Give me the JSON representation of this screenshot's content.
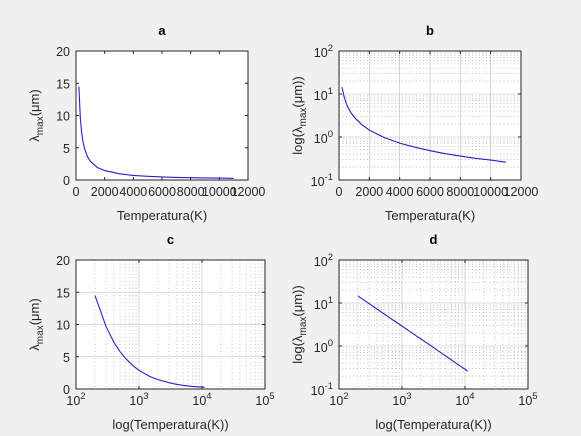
{
  "chart_data": [
    {
      "id": "a",
      "type": "line",
      "title": "a",
      "xlabel": "Temperatura(K)",
      "ylabel": [
        "λ",
        "max",
        "(μm)"
      ],
      "xscale": "linear",
      "yscale": "linear",
      "xlim": [
        0,
        12000
      ],
      "ylim": [
        0,
        20
      ],
      "xticks": [
        0,
        2000,
        4000,
        6000,
        8000,
        10000,
        12000
      ],
      "xticklabels": [
        "0",
        "2000",
        "4000",
        "6000",
        "8000",
        "10000",
        "12000"
      ],
      "yticks": [
        0,
        5,
        10,
        15,
        20
      ],
      "yticklabels": [
        "0",
        "5",
        "10",
        "15",
        "20"
      ],
      "grid": false,
      "color": "#2222cc",
      "x": [
        200,
        300,
        400,
        500,
        600,
        800,
        1000,
        1500,
        2000,
        3000,
        4000,
        5000,
        6000,
        7000,
        8000,
        9000,
        10000,
        11000
      ],
      "y": [
        14.49,
        9.66,
        7.24,
        5.8,
        4.83,
        3.62,
        2.9,
        1.93,
        1.45,
        0.97,
        0.72,
        0.58,
        0.48,
        0.41,
        0.36,
        0.32,
        0.29,
        0.26
      ]
    },
    {
      "id": "b",
      "type": "line",
      "title": "b",
      "xlabel": "Temperatura(K)",
      "ylabel": [
        "log(λ",
        "max",
        "(μm))"
      ],
      "xscale": "linear",
      "yscale": "log",
      "xlim": [
        0,
        12000
      ],
      "ylim": [
        0.1,
        100
      ],
      "xticks": [
        0,
        2000,
        4000,
        6000,
        8000,
        10000,
        12000
      ],
      "xticklabels": [
        "0",
        "2000",
        "4000",
        "6000",
        "8000",
        "10000",
        "12000"
      ],
      "yticks": [
        0.1,
        1,
        10,
        100
      ],
      "yticklabels": [
        [
          "10",
          "-1"
        ],
        [
          "10",
          "0"
        ],
        [
          "10",
          "1"
        ],
        [
          "10",
          "2"
        ]
      ],
      "grid": true,
      "color": "#2222cc",
      "x": [
        200,
        300,
        400,
        500,
        600,
        800,
        1000,
        1500,
        2000,
        3000,
        4000,
        5000,
        6000,
        7000,
        8000,
        9000,
        10000,
        11000
      ],
      "y": [
        14.49,
        9.66,
        7.24,
        5.8,
        4.83,
        3.62,
        2.9,
        1.93,
        1.45,
        0.97,
        0.72,
        0.58,
        0.48,
        0.41,
        0.36,
        0.32,
        0.29,
        0.26
      ]
    },
    {
      "id": "c",
      "type": "line",
      "title": "c",
      "xlabel": "log(Temperatura(K))",
      "ylabel": [
        "λ",
        "max",
        "(μm)"
      ],
      "xscale": "log",
      "yscale": "linear",
      "xlim": [
        100,
        100000
      ],
      "ylim": [
        0,
        20
      ],
      "xticks": [
        100,
        1000,
        10000,
        100000
      ],
      "xticklabels": [
        [
          "10",
          "2"
        ],
        [
          "10",
          "3"
        ],
        [
          "10",
          "4"
        ],
        [
          "10",
          "5"
        ]
      ],
      "yticks": [
        0,
        5,
        10,
        15,
        20
      ],
      "yticklabels": [
        "0",
        "5",
        "10",
        "15",
        "20"
      ],
      "grid": true,
      "color": "#2222cc",
      "x": [
        200,
        300,
        400,
        500,
        600,
        800,
        1000,
        1500,
        2000,
        3000,
        4000,
        5000,
        6000,
        7000,
        8000,
        9000,
        10000,
        11000
      ],
      "y": [
        14.49,
        9.66,
        7.24,
        5.8,
        4.83,
        3.62,
        2.9,
        1.93,
        1.45,
        0.97,
        0.72,
        0.58,
        0.48,
        0.41,
        0.36,
        0.32,
        0.29,
        0.26
      ]
    },
    {
      "id": "d",
      "type": "line",
      "title": "d",
      "xlabel": "log(Temperatura(K))",
      "ylabel": [
        "log(λ",
        "max",
        "(μm))"
      ],
      "xscale": "log",
      "yscale": "log",
      "xlim": [
        100,
        100000
      ],
      "ylim": [
        0.1,
        100
      ],
      "xticks": [
        100,
        1000,
        10000,
        100000
      ],
      "xticklabels": [
        [
          "10",
          "2"
        ],
        [
          "10",
          "3"
        ],
        [
          "10",
          "4"
        ],
        [
          "10",
          "5"
        ]
      ],
      "yticks": [
        0.1,
        1,
        10,
        100
      ],
      "yticklabels": [
        [
          "10",
          "-1"
        ],
        [
          "10",
          "0"
        ],
        [
          "10",
          "1"
        ],
        [
          "10",
          "2"
        ]
      ],
      "grid": true,
      "color": "#2222cc",
      "x": [
        200,
        300,
        400,
        500,
        600,
        800,
        1000,
        1500,
        2000,
        3000,
        4000,
        5000,
        6000,
        7000,
        8000,
        9000,
        10000,
        11000
      ],
      "y": [
        14.49,
        9.66,
        7.24,
        5.8,
        4.83,
        3.62,
        2.9,
        1.93,
        1.45,
        0.97,
        0.72,
        0.58,
        0.48,
        0.41,
        0.36,
        0.32,
        0.29,
        0.26
      ]
    }
  ]
}
